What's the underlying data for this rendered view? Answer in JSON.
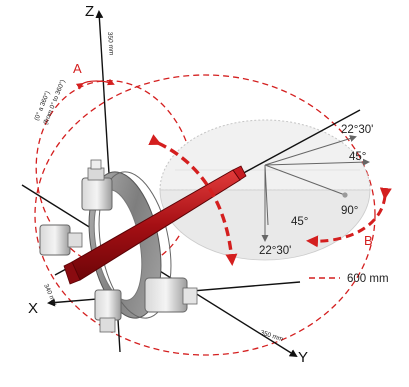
{
  "diagram": {
    "axes": {
      "z": "Z",
      "x": "X",
      "y": "Y"
    },
    "dimensions": {
      "z_length": "350 mm",
      "x_length": "340 mm",
      "y_length": "350 mm"
    },
    "motion_a": {
      "label": "A",
      "range_line1": "(0° a 360°)",
      "range_line2": "(from 0° to 360°)"
    },
    "motion_b": {
      "label": "B"
    },
    "angles": {
      "top": "22°30'",
      "upper": "45°",
      "middle": "90°",
      "lower": "45°",
      "bottom": "22°30'"
    },
    "legend": {
      "text": "600 mm"
    },
    "colors": {
      "accent_red": "#d41f1f",
      "gun_red": "#b31217",
      "ring_gray": "#8f8f8f",
      "axis_black": "#111111"
    }
  }
}
